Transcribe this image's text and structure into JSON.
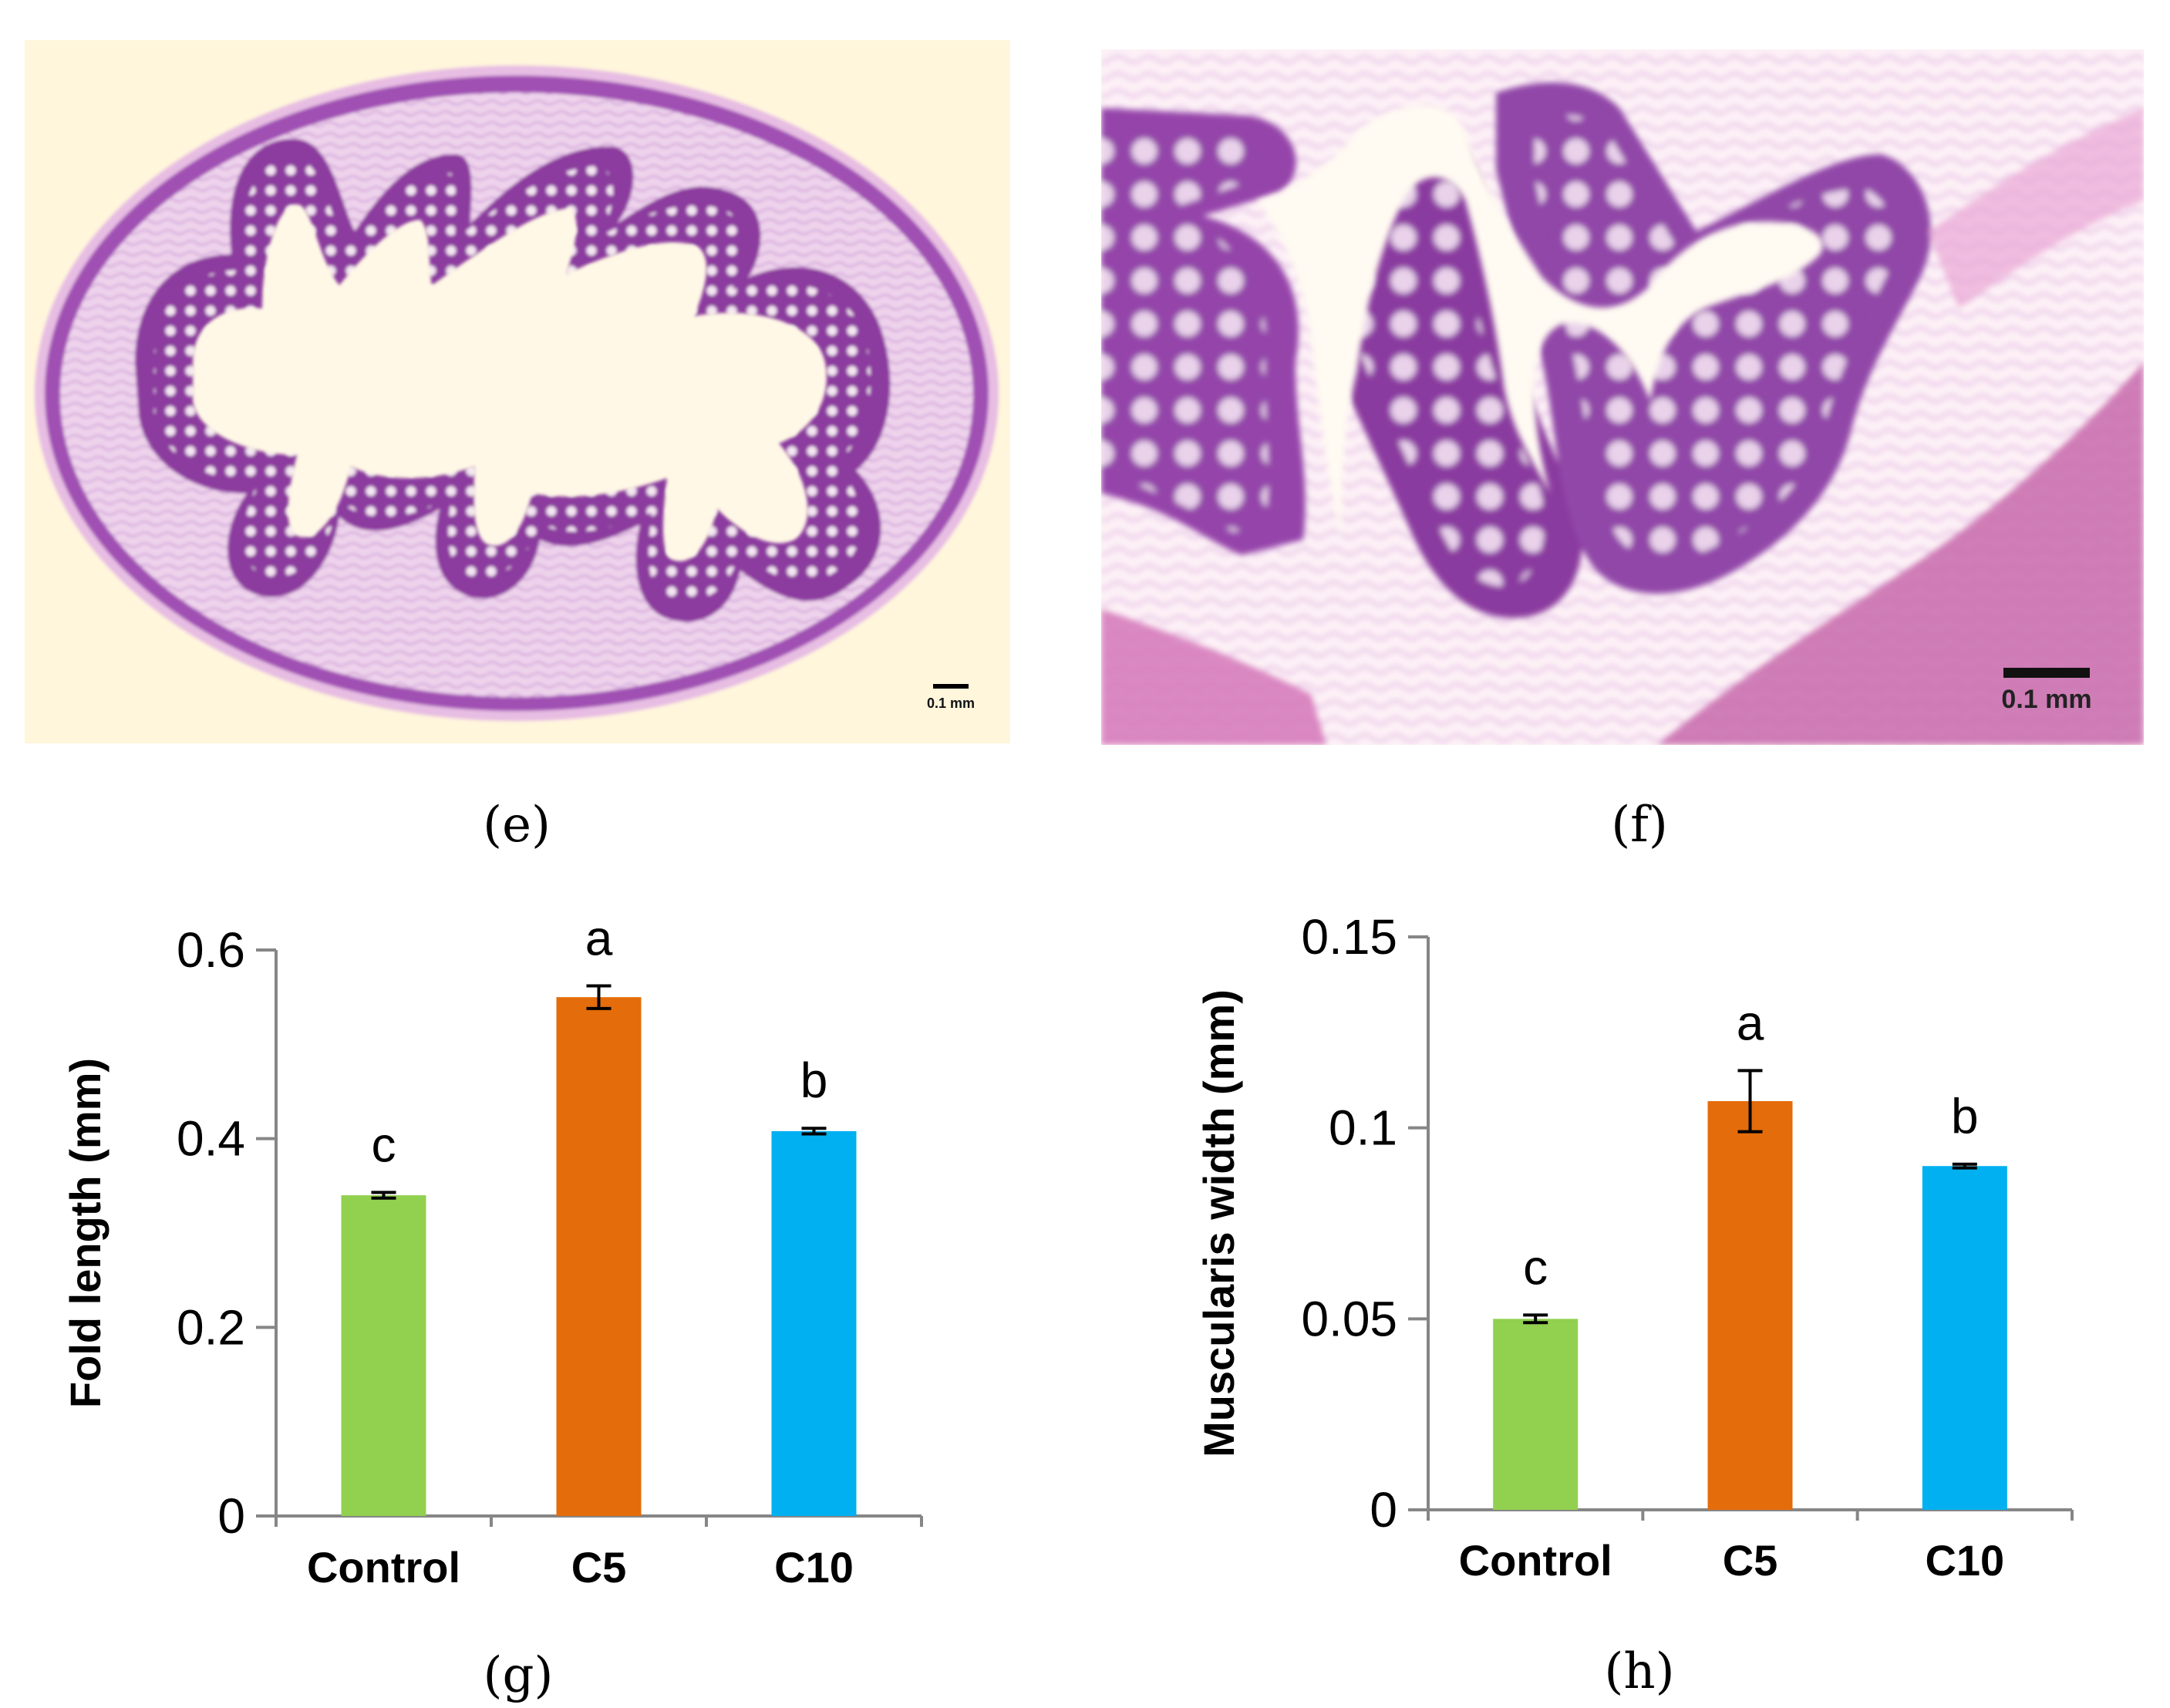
{
  "panels": {
    "e": {
      "label": "(e)",
      "scale_bar": "0.1 mm"
    },
    "f": {
      "label": "(f)",
      "scale_bar": "0.1 mm"
    },
    "g": {
      "label": "(g)"
    },
    "h": {
      "label": "(h)"
    }
  },
  "colors": {
    "control": "#92d050",
    "c5": "#e46c0a",
    "c10": "#00b0f0",
    "tissue_bg": "#fff7df",
    "tissue_stain": "#9b4fae",
    "tissue_light": "#d7a6dd"
  },
  "chart_data": [
    {
      "type": "bar",
      "panel": "(g)",
      "categories": [
        "Control",
        "C5",
        "C10"
      ],
      "values": [
        0.34,
        0.55,
        0.408
      ],
      "errors": [
        0.003,
        0.012,
        0.003
      ],
      "letters": [
        "c",
        "a",
        "b"
      ],
      "ylabel": "Fold length (mm)",
      "xlabel": "",
      "ylim": [
        0,
        0.6
      ],
      "yticks": [
        "0",
        "0.2",
        "0.4",
        "0.6"
      ],
      "grid": false,
      "bar_colors": [
        "#92d050",
        "#e46c0a",
        "#00b0f0"
      ]
    },
    {
      "type": "bar",
      "panel": "(h)",
      "categories": [
        "Control",
        "C5",
        "C10"
      ],
      "values": [
        0.05,
        0.107,
        0.09
      ],
      "errors": [
        0.001,
        0.008,
        0.0005
      ],
      "letters": [
        "c",
        "a",
        "b"
      ],
      "ylabel": "Muscularis width (mm)",
      "xlabel": "",
      "ylim": [
        0,
        0.15
      ],
      "yticks": [
        "0",
        "0.05",
        "0.1",
        "0.15"
      ],
      "grid": false,
      "bar_colors": [
        "#92d050",
        "#e46c0a",
        "#00b0f0"
      ]
    }
  ]
}
